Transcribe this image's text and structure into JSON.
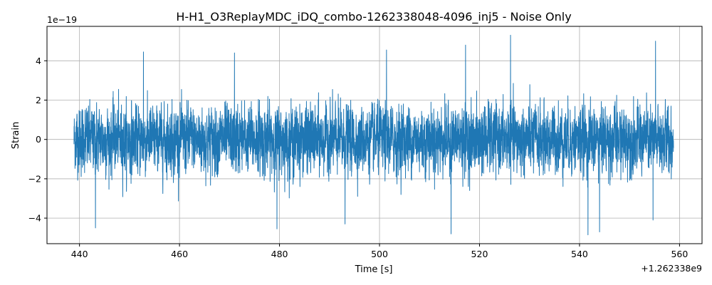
{
  "chart_data": {
    "type": "line",
    "title": "H-H1_O3ReplayMDC_iDQ_combo-1262338048-4096_inj5 - Noise Only",
    "xlabel": "Time [s]",
    "ylabel": "Strain",
    "x_offset_label": "+1.262338e9",
    "y_scale_label": "1e−19",
    "xlim": [
      433.5,
      564.5
    ],
    "ylim": [
      -5.3,
      5.75
    ],
    "x_ticks": [
      440,
      460,
      480,
      500,
      520,
      540,
      560
    ],
    "x_tick_labels": [
      "440",
      "460",
      "480",
      "500",
      "520",
      "540",
      "560"
    ],
    "y_ticks": [
      -4,
      -2,
      0,
      2,
      4
    ],
    "y_tick_labels": [
      "−4",
      "−2",
      "0",
      "2",
      "4"
    ],
    "grid": true,
    "line_color": "#1f77b4",
    "series": [
      {
        "x_start": 438.9,
        "x_end": 558.8,
        "typical_range": [
          -3.0,
          3.0
        ],
        "extremes": [
          {
            "x": 443.2,
            "y": -4.5
          },
          {
            "x": 452.8,
            "y": 4.45
          },
          {
            "x": 471.0,
            "y": 4.4
          },
          {
            "x": 479.5,
            "y": -4.55
          },
          {
            "x": 493.1,
            "y": -4.3
          },
          {
            "x": 501.4,
            "y": 4.55
          },
          {
            "x": 514.3,
            "y": -4.8
          },
          {
            "x": 517.2,
            "y": 4.8
          },
          {
            "x": 526.2,
            "y": 5.3
          },
          {
            "x": 541.7,
            "y": -4.85
          },
          {
            "x": 544.0,
            "y": -4.7
          },
          {
            "x": 554.7,
            "y": -4.1
          },
          {
            "x": 555.2,
            "y": 5.0
          }
        ]
      }
    ]
  }
}
